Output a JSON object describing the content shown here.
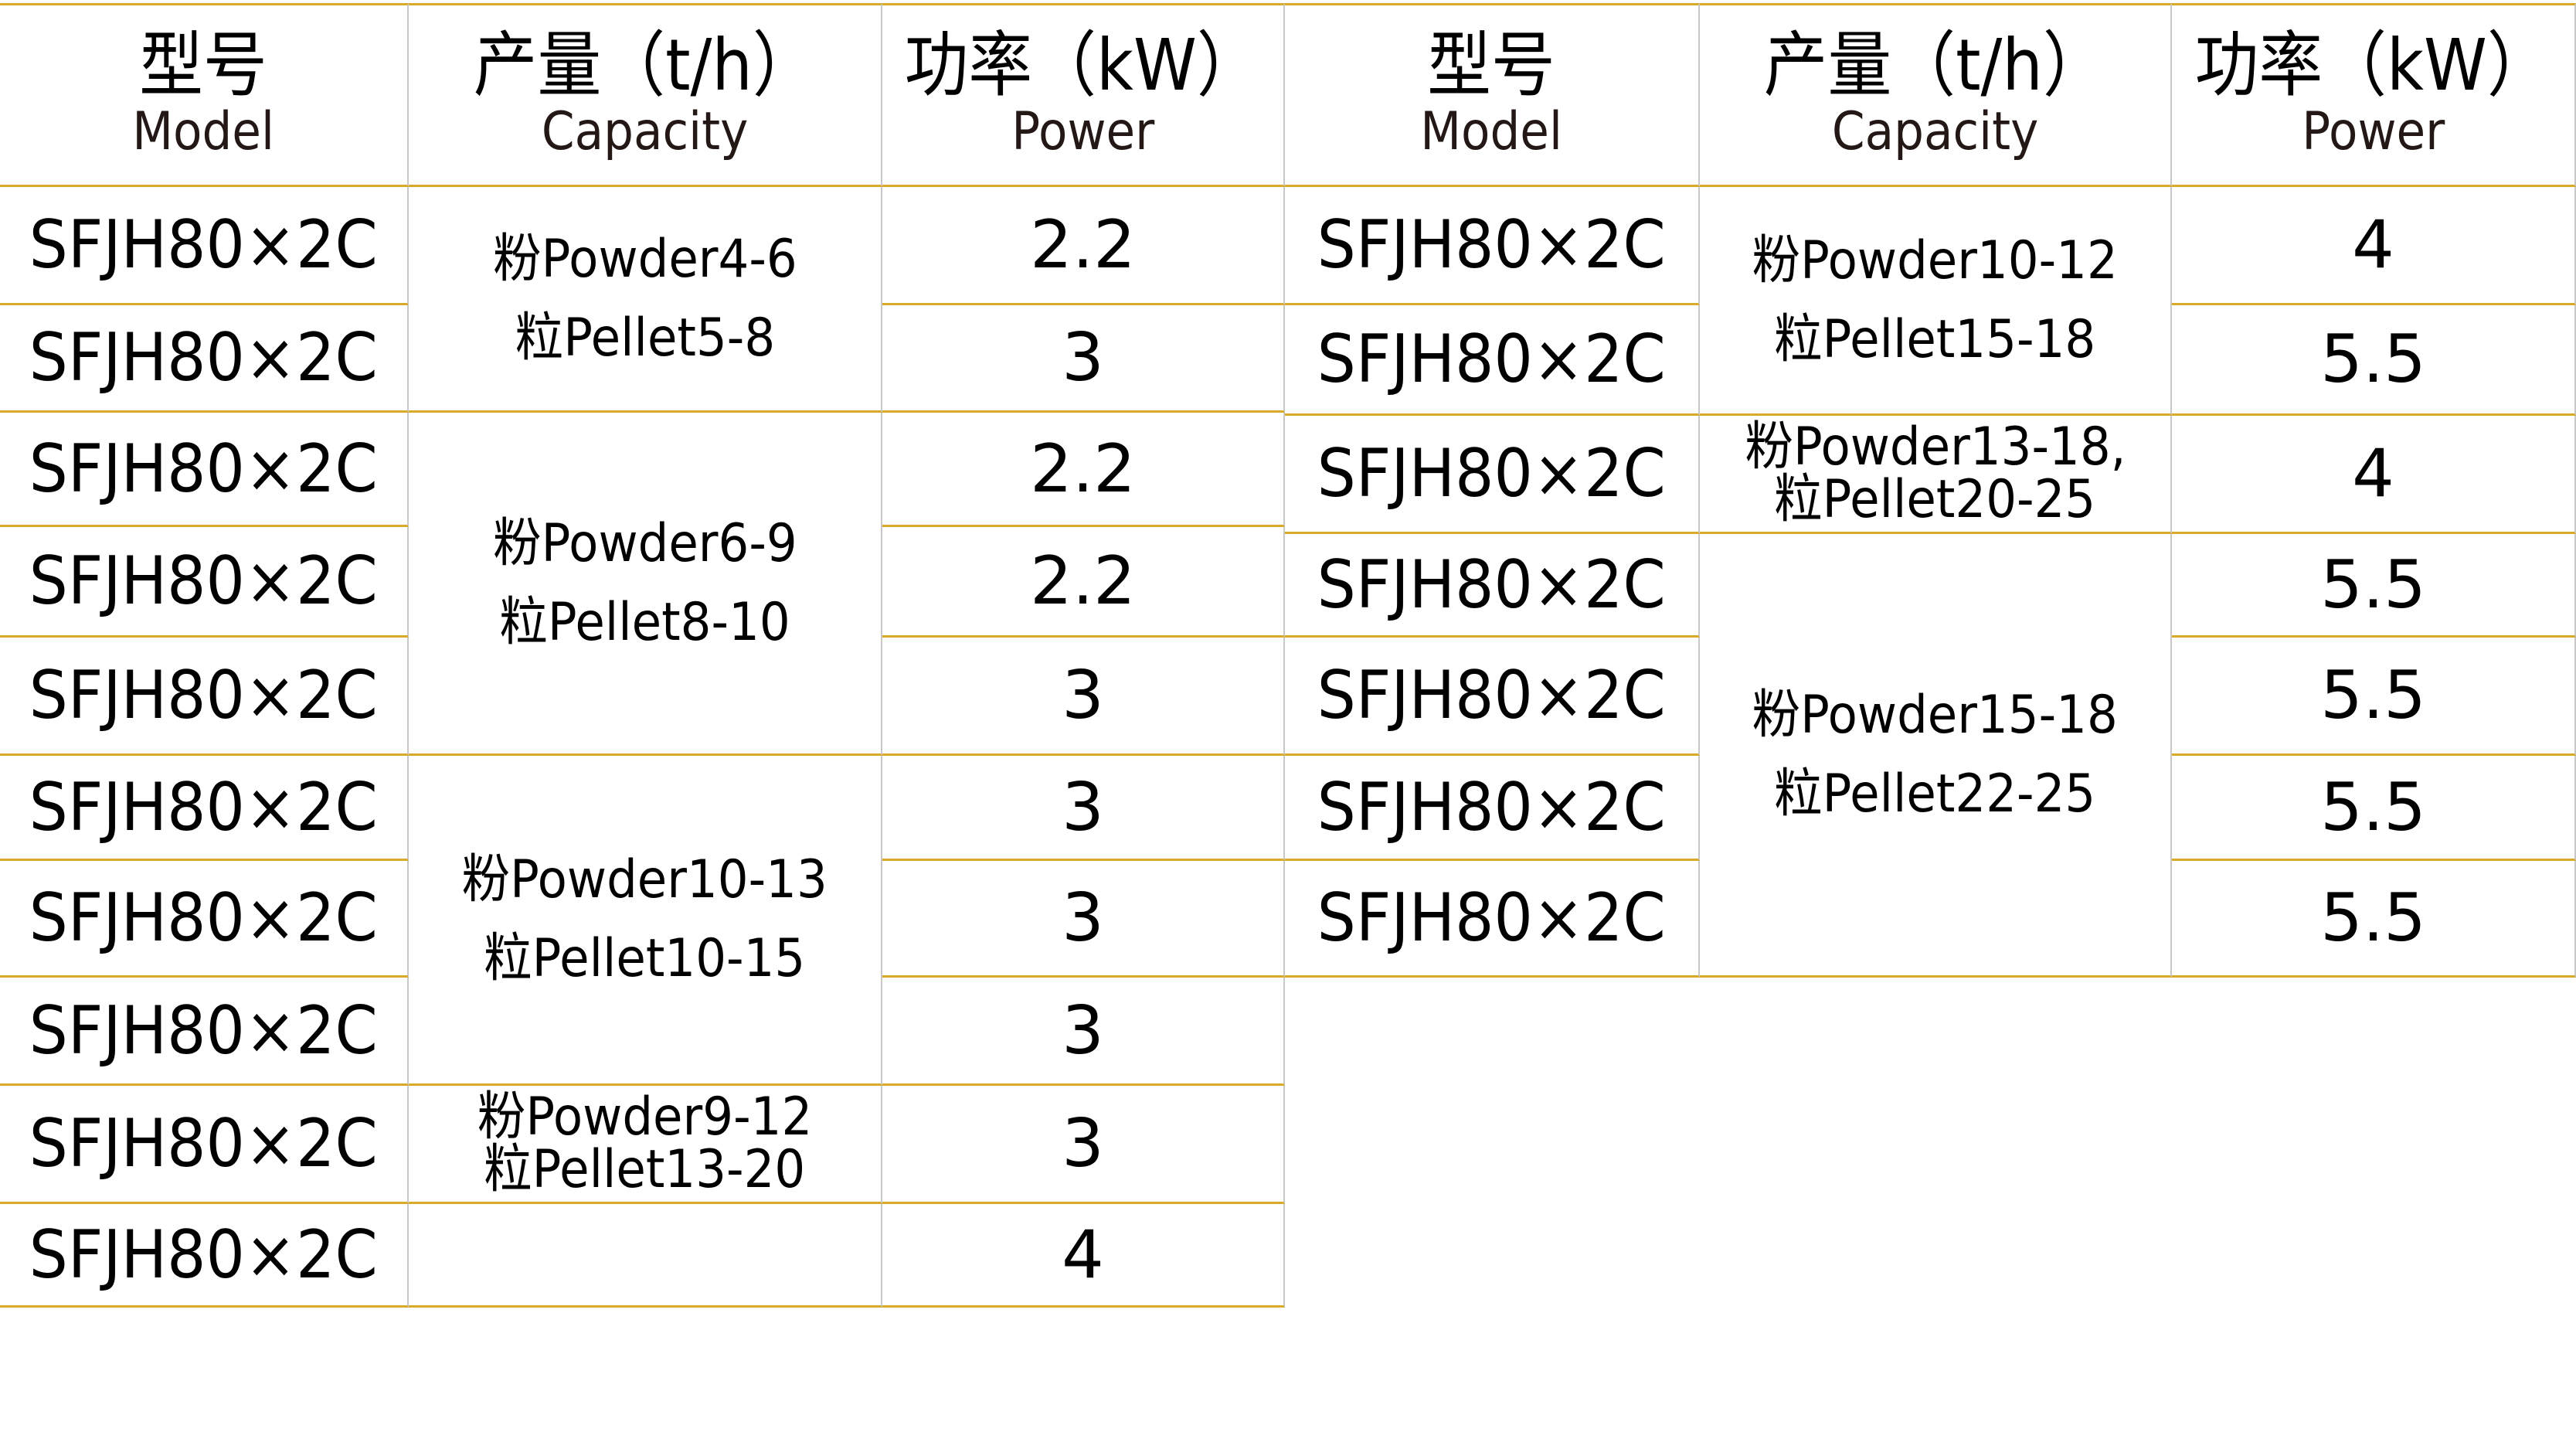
{
  "headers": [
    {
      "zh": "型号",
      "en": "Model"
    },
    {
      "zh": "产量（t/h）",
      "en": "Capacity"
    },
    {
      "zh": "功率（kW）",
      "en": "Power"
    }
  ],
  "left_table": {
    "models": [
      "SFJH80×2C",
      "SFJH80×2C",
      "SFJH80×2C",
      "SFJH80×2C",
      "SFJH80×2C",
      "SFJH80×2C",
      "SFJH80×2C",
      "SFJH80×2C",
      "SFJH80×2C",
      "SFJH80×2C"
    ],
    "capacity_groups": [
      {
        "rows": 2,
        "powder": "粉Powder4-6",
        "pellet": "粒Pellet5-8"
      },
      {
        "rows": 3,
        "powder": "粉Powder6-9",
        "pellet": "粒Pellet8-10"
      },
      {
        "rows": 3,
        "powder": "粉Powder10-13",
        "pellet": "粒Pellet10-15"
      },
      {
        "rows": 1,
        "powder": "粉Powder9-12",
        "pellet": "粒Pellet13-20"
      },
      {
        "rows": 1,
        "powder": "",
        "pellet": ""
      }
    ],
    "power": [
      "2.2",
      "3",
      "2.2",
      "2.2",
      "3",
      "3",
      "3",
      "3",
      "3",
      "4"
    ]
  },
  "right_table": {
    "models": [
      "SFJH80×2C",
      "SFJH80×2C",
      "SFJH80×2C",
      "SFJH80×2C",
      "SFJH80×2C",
      "SFJH80×2C",
      "SFJH80×2C"
    ],
    "capacity_groups": [
      {
        "rows": 2,
        "powder": "粉Powder10-12",
        "pellet": "粒Pellet15-18"
      },
      {
        "rows": 1,
        "powder": "粉Powder13-18,",
        "pellet": "粒Pellet20-25"
      },
      {
        "rows": 4,
        "powder": "粉Powder15-18",
        "pellet": "粒Pellet22-25"
      }
    ],
    "power": [
      "4",
      "5.5",
      "4",
      "5.5",
      "5.5",
      "5.5",
      "5.5"
    ]
  },
  "colors": {
    "row_line": "#d9a929",
    "column_line": "#c8c8c8"
  }
}
